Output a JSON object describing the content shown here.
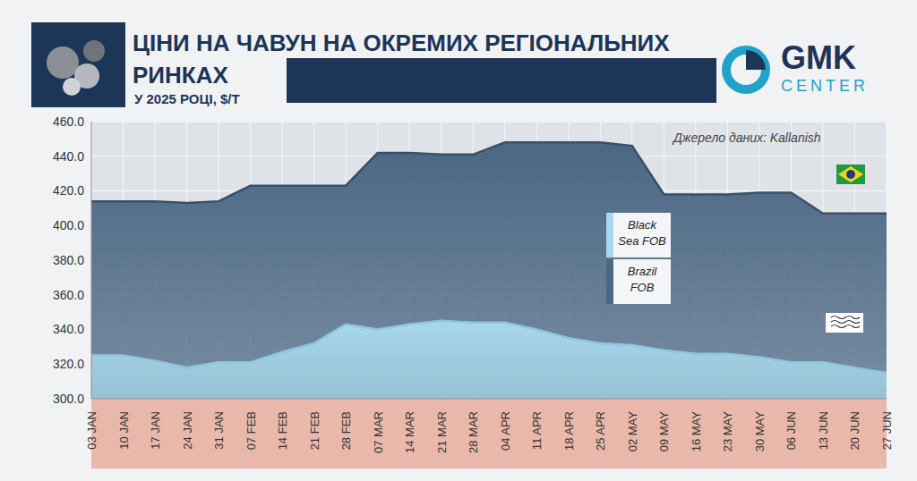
{
  "chart_data": {
    "type": "area",
    "title": "ЦІНИ НА ЧАВУН НА ОКРЕМИХ РЕГІОНАЛЬНИХ РИНКАХ",
    "subtitle": "У 2025 РОЦІ, $/Т",
    "source": "Джерело даних: Kallanish",
    "logo": [
      "GMK",
      "CENTER"
    ],
    "categories": [
      "03 JAN",
      "10 JAN",
      "17 JAN",
      "24 JAN",
      "31 JAN",
      "07 FEB",
      "14 FEB",
      "21 FEB",
      "28 FEB",
      "07 MAR",
      "14 MAR",
      "21 MAR",
      "28 MAR",
      "04 APR",
      "11 APR",
      "18 APR",
      "25 APR",
      "02 MAY",
      "09 MAY",
      "16 MAY",
      "23 MAY",
      "30 MAY",
      "06 JUN",
      "13 JUN",
      "20 JUN",
      "27 JUN"
    ],
    "series": [
      {
        "name": "Black Sea FOB",
        "color": "#a8d8ec",
        "values": [
          325,
          325,
          322,
          318,
          321,
          321,
          327,
          332,
          343,
          340,
          343,
          345,
          344,
          344,
          340,
          335,
          332,
          331,
          328,
          326,
          326,
          324,
          321,
          321,
          318,
          315
        ]
      },
      {
        "name": "Brazil FOB",
        "color": "#4b6784",
        "values": [
          414,
          414,
          414,
          413,
          414,
          423,
          423,
          423,
          423,
          442,
          442,
          441,
          441,
          448,
          448,
          448,
          448,
          446,
          418,
          418,
          418,
          419,
          419,
          407,
          407,
          407
        ]
      }
    ],
    "ylim": [
      300,
      460
    ],
    "yticks": [
      {
        "value": 300,
        "label": "300.0"
      },
      {
        "value": 320,
        "label": "320.0"
      },
      {
        "value": 340,
        "label": "340.0"
      },
      {
        "value": 360,
        "label": "360.0"
      },
      {
        "value": 380,
        "label": "380.0"
      },
      {
        "value": 400,
        "label": "400.0"
      },
      {
        "value": 420,
        "label": "420.0"
      },
      {
        "value": 440,
        "label": "440.0"
      },
      {
        "value": 460,
        "label": "460.0"
      }
    ],
    "grid": true,
    "legend": "center"
  }
}
